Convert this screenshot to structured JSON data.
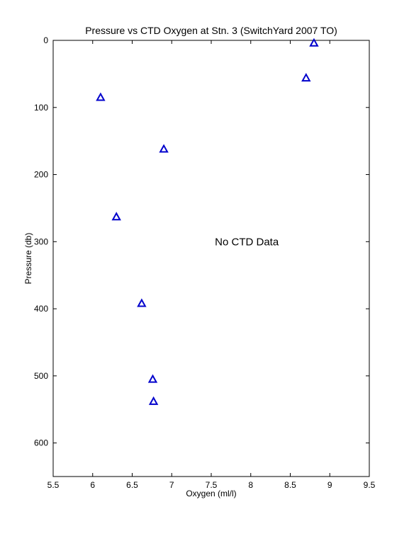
{
  "chart_data": {
    "type": "scatter",
    "title": "Pressure vs CTD Oxygen at Stn. 3 (SwitchYard 2007 TO)",
    "xlabel": "Oxygen (ml/l)",
    "ylabel": "Pressure (db)",
    "xlim": [
      5.5,
      9.5
    ],
    "ylim": [
      0,
      650
    ],
    "y_reversed": true,
    "xticks": [
      5.5,
      6,
      6.5,
      7,
      7.5,
      8,
      8.5,
      9,
      9.5
    ],
    "xtick_labels": [
      "5.5",
      "6",
      "6.5",
      "7",
      "7.5",
      "8",
      "8.5",
      "9",
      "9.5"
    ],
    "yticks": [
      0,
      100,
      200,
      300,
      400,
      500,
      600
    ],
    "ytick_labels": [
      "0",
      "100",
      "200",
      "300",
      "400",
      "500",
      "600"
    ],
    "grid": false,
    "marker": "triangle",
    "marker_color": "#0000cc",
    "annotation": {
      "text": "No CTD Data",
      "x": 7.95,
      "y": 300
    },
    "series": [
      {
        "x": [
          8.8,
          8.7,
          6.1,
          6.9,
          6.3,
          6.62,
          6.76,
          6.77
        ],
        "y": [
          4,
          56,
          85,
          162,
          263,
          392,
          505,
          538
        ]
      }
    ]
  }
}
